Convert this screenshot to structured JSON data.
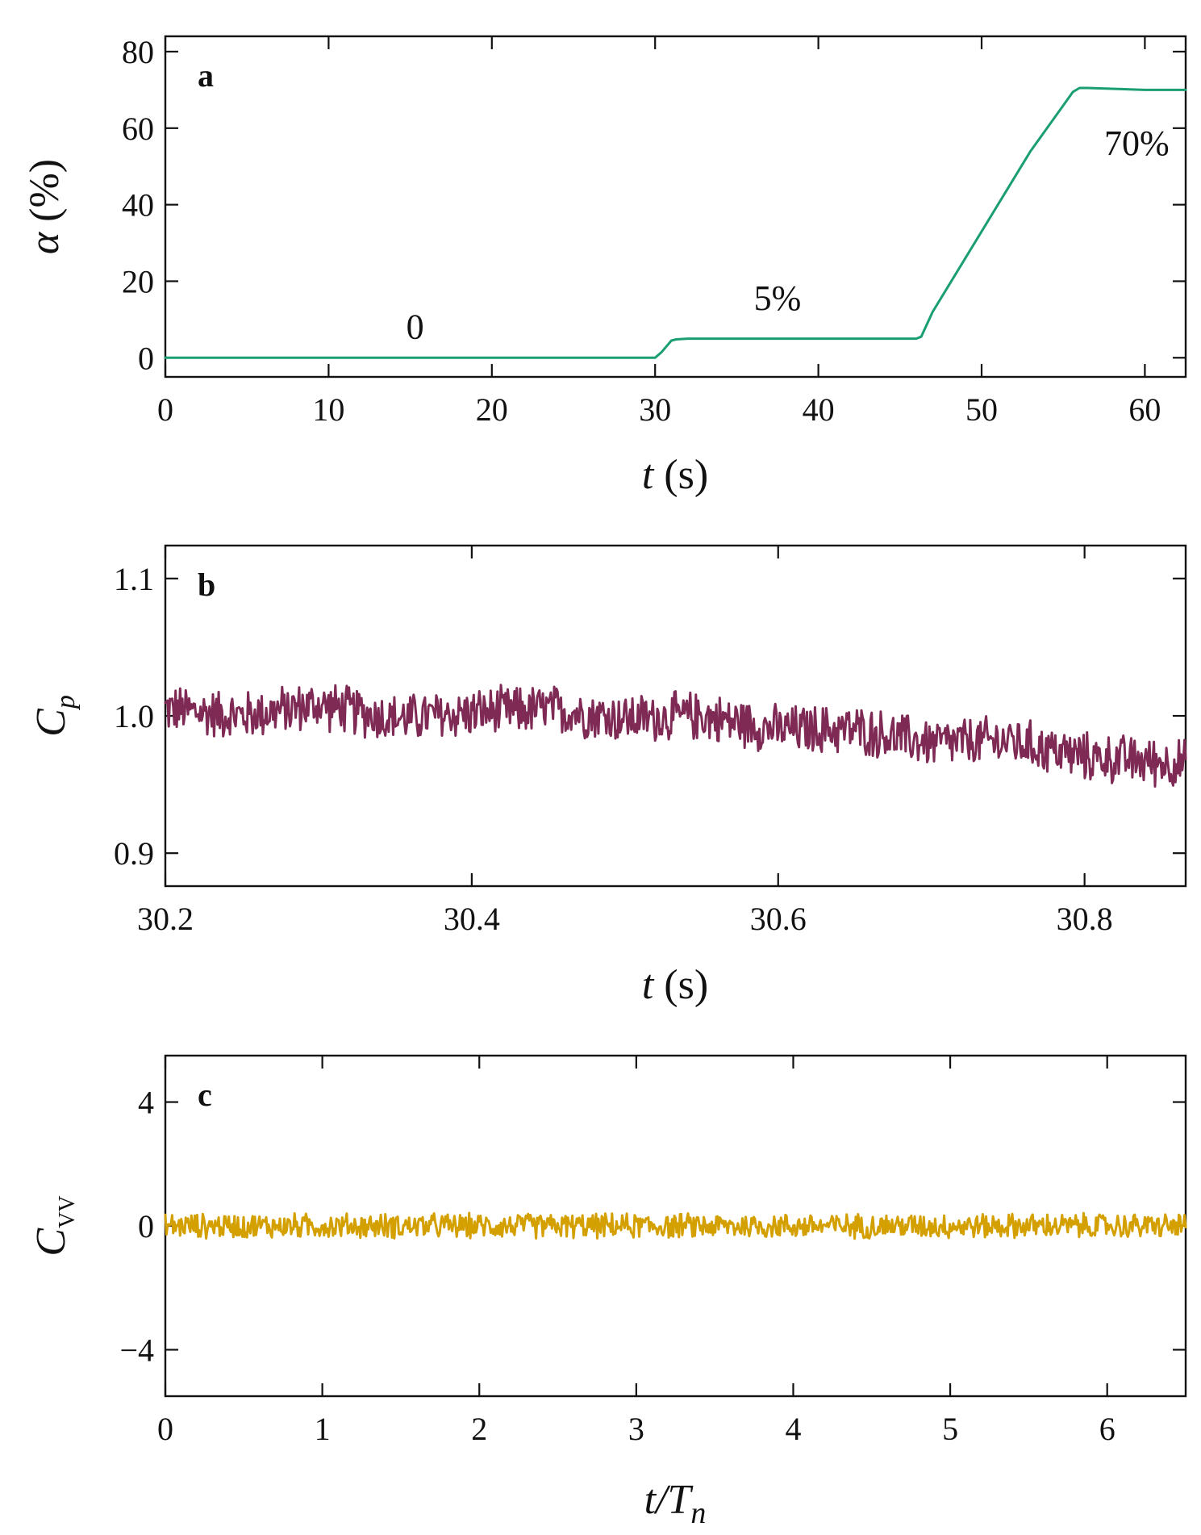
{
  "chart_data": [
    {
      "panel": "a",
      "type": "line",
      "xlabel_var": "t",
      "xlabel_unit": " (s)",
      "ylabel_var": "α",
      "ylabel_unit": " (%)",
      "xlim": [
        0,
        62.5
      ],
      "ylim": [
        -5,
        84
      ],
      "xticks": [
        0,
        10,
        20,
        30,
        40,
        50,
        60
      ],
      "xtick_labels": [
        "0",
        "10",
        "20",
        "30",
        "40",
        "50",
        "60"
      ],
      "yticks": [
        0,
        20,
        40,
        60,
        80
      ],
      "ytick_labels": [
        "0",
        "20",
        "40",
        "60",
        "80"
      ],
      "color": "#1a9e72",
      "series": [
        {
          "name": "alpha",
          "x": [
            0,
            30,
            30.4,
            31,
            31.3,
            32,
            46,
            46.3,
            47,
            50,
            53,
            55.6,
            56,
            56.5,
            60,
            62.5
          ],
          "y": [
            0,
            0,
            1.5,
            4.5,
            4.8,
            5,
            5,
            5.5,
            12,
            33,
            54,
            69.5,
            70.5,
            70.5,
            70,
            70
          ]
        }
      ],
      "annotations": [
        {
          "text": "0",
          "x": 15.3,
          "y": 5
        },
        {
          "text": "5%",
          "x": 37.5,
          "y": 12.5
        },
        {
          "text": "70%",
          "x": 59.5,
          "y": 53
        }
      ]
    },
    {
      "panel": "b",
      "type": "line",
      "xlabel_var": "t",
      "xlabel_unit": " (s)",
      "ylabel_var": "C",
      "ylabel_sub": "p",
      "xlim": [
        30.2,
        30.866
      ],
      "ylim": [
        0.876,
        1.124
      ],
      "xticks": [
        30.2,
        30.4,
        30.6,
        30.8
      ],
      "xtick_labels": [
        "30.2",
        "30.4",
        "30.6",
        "30.8"
      ],
      "yticks": [
        0.9,
        1.0,
        1.1
      ],
      "ytick_labels": [
        "0.9",
        "1.0",
        "1.1"
      ],
      "color": "#7e2a55",
      "series": [
        {
          "name": "Cp",
          "x": [
            30.2,
            30.25,
            30.3,
            30.35,
            30.4,
            30.45,
            30.5,
            30.55,
            30.6,
            30.65,
            30.7,
            30.75,
            30.8,
            30.866
          ],
          "y": [
            1.005,
            1.0,
            1.008,
            0.998,
            1.002,
            1.005,
            0.998,
            1.0,
            0.99,
            0.99,
            0.98,
            0.982,
            0.97,
            0.965
          ],
          "noise_amplitude": 0.02
        }
      ]
    },
    {
      "panel": "c",
      "type": "line",
      "xlabel_var": "t/T",
      "xlabel_sub": "n",
      "ylabel_var": "C",
      "ylabel_sub": "VV",
      "xlim": [
        0,
        6.5
      ],
      "ylim": [
        -5.5,
        5.5
      ],
      "xticks": [
        0,
        1,
        2,
        3,
        4,
        5,
        6
      ],
      "xtick_labels": [
        "0",
        "1",
        "2",
        "3",
        "4",
        "5",
        "6"
      ],
      "yticks": [
        -4,
        0,
        4
      ],
      "ytick_labels": [
        "−4",
        "0",
        "4"
      ],
      "color": "#d4a000",
      "series": [
        {
          "name": "CVV",
          "x": [
            0,
            6.5
          ],
          "y": [
            0,
            0
          ],
          "noise_amplitude": 0.45
        }
      ]
    }
  ]
}
